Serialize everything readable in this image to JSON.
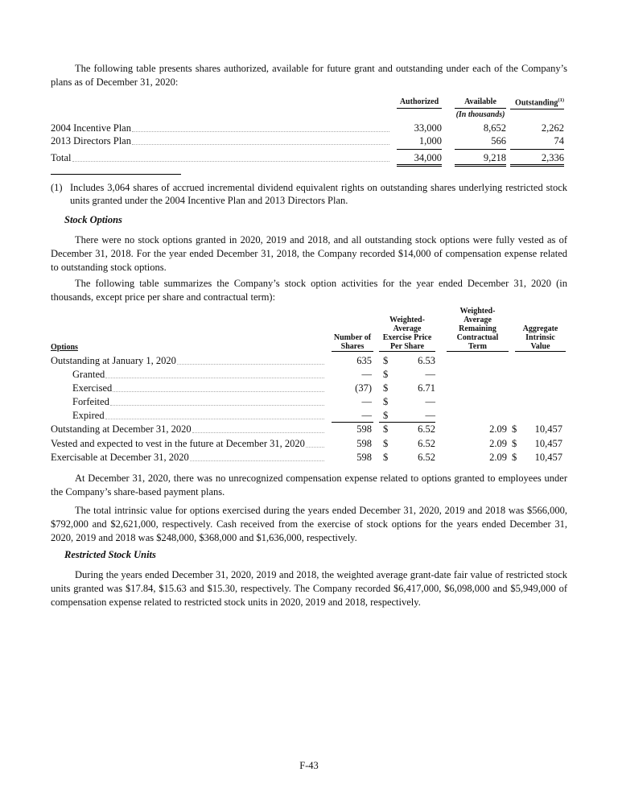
{
  "intro": "The following table presents shares authorized, available for future grant and outstanding under each of the Company’s plans as of December 31, 2020:",
  "plans_table": {
    "headers": [
      "Authorized",
      "Available",
      "Outstanding"
    ],
    "note_marker": "(1)",
    "unit": "(In thousands)",
    "rows": [
      [
        "2004 Incentive Plan",
        "33,000",
        "8,652",
        "2,262"
      ],
      [
        "2013 Directors Plan",
        "1,000",
        "566",
        "74"
      ]
    ],
    "total": [
      "Total",
      "34,000",
      "9,218",
      "2,336"
    ]
  },
  "footnote": {
    "marker": "(1)",
    "text": "Includes 3,064 shares of accrued incremental dividend equivalent rights on outstanding shares underlying restricted stock units granted under the 2004 Incentive Plan and 2013 Directors Plan."
  },
  "stock_options": {
    "heading": "Stock Options",
    "paragraphs": [
      "There were no stock options granted in 2020, 2019 and 2018, and all outstanding stock options were fully vested as of December 31, 2018. For the year ended December 31, 2018, the Company recorded $14,000 of compensation expense related to outstanding stock options.",
      "The following table summarizes the Company’s stock option activities for the year ended December 31, 2020 (in thousands, except price per share and contractual term):"
    ],
    "table": {
      "headers": {
        "label": "Options",
        "shares": [
          "Number of",
          "Shares"
        ],
        "price": [
          "Weighted-",
          "Average",
          "Exercise Price",
          "Per Share"
        ],
        "term": [
          "Weighted-",
          "Average",
          "Remaining",
          "Contractual",
          "Term"
        ],
        "value": [
          "Aggregate",
          "Intrinsic",
          "Value"
        ]
      },
      "opening": {
        "label": "Outstanding at January 1, 2020",
        "shares": "635",
        "currency": "$",
        "price": "6.53"
      },
      "activity": [
        {
          "label": "Granted",
          "shares": "—",
          "currency": "$",
          "price": "—"
        },
        {
          "label": "Exercised",
          "shares": "(37)",
          "currency": "$",
          "price": "6.71"
        },
        {
          "label": "Forfeited",
          "shares": "—",
          "currency": "$",
          "price": "—"
        },
        {
          "label": "Expired",
          "shares": "—",
          "currency": "$",
          "price": "—"
        }
      ],
      "closing": [
        {
          "label": "Outstanding at December 31, 2020",
          "shares": "598",
          "currency": "$",
          "price": "6.52",
          "term": "2.09",
          "value_currency": "$",
          "value": "10,457"
        },
        {
          "label": "Vested and expected to vest in the future at December 31, 2020",
          "shares": "598",
          "currency": "$",
          "price": "6.52",
          "term": "2.09",
          "value_currency": "$",
          "value": "10,457"
        },
        {
          "label": "Exercisable at December 31, 2020",
          "shares": "598",
          "currency": "$",
          "price": "6.52",
          "term": "2.09",
          "value_currency": "$",
          "value": "10,457"
        }
      ]
    },
    "after": [
      "At December 31, 2020, there was no unrecognized compensation expense related to options granted to employees under the Company’s share-based payment plans.",
      "The total intrinsic value for options exercised during the years ended December 31, 2020, 2019 and 2018 was $566,000, $792,000 and $2,621,000, respectively. Cash received from the exercise of stock options for the years ended December 31, 2020, 2019 and 2018 was $248,000, $368,000 and $1,636,000, respectively."
    ]
  },
  "rsu": {
    "heading": "Restricted Stock Units",
    "paragraph": "During the years ended December 31, 2020, 2019 and 2018, the weighted average grant-date fair value of restricted stock units granted was $17.84, $15.63 and $15.30, respectively. The Company recorded $6,417,000, $6,098,000 and $5,949,000 of compensation expense related to restricted stock units in 2020, 2019 and 2018, respectively."
  },
  "footer": {
    "page_number": "F-43"
  }
}
